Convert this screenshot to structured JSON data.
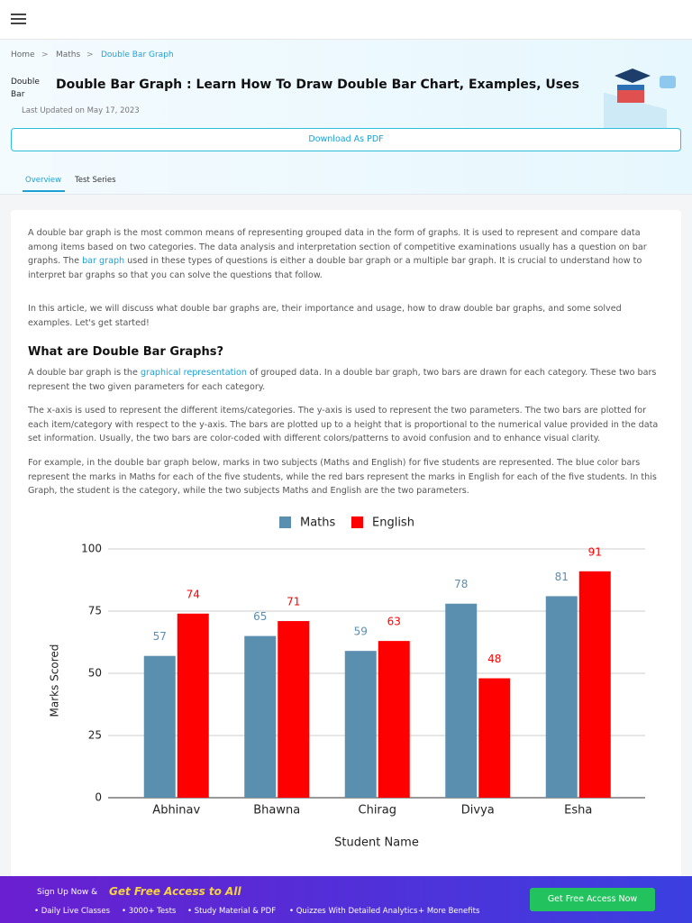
{
  "breadcrumb": [
    "Home",
    "Maths",
    "Double Bar Graph"
  ],
  "image_alt": "Double Bar",
  "title": "Double Bar Graph : Learn How To Draw Double Bar Chart, Examples, Uses",
  "updated": "Last Updated on May 17, 2023",
  "download": "Download As PDF",
  "tabs": [
    "Overview",
    "Test Series"
  ],
  "article": {
    "p1": [
      "A double bar graph is the most common means of representing grouped data in the form of graphs. It is used to represent and compare data among items based on two categories. The data analysis and interpretation section of competitive examinations usually has a question on bar graphs. The ",
      "bar graph",
      " used in these types of questions is either a double bar graph or a multiple bar graph. It is crucial to understand how to interpret bar graphs so that you can solve the questions that follow."
    ],
    "p2": "In this article, we will discuss what double bar graphs are, their importance and usage, how to draw double bar graphs, and some solved examples. Let's get started!",
    "heading": "What are Double Bar Graphs?",
    "p3": [
      "A double bar graph is the ",
      "graphical representation",
      " of grouped data. In a double bar graph, two bars are drawn for each category. These two bars represent the two given parameters for each category."
    ],
    "p4": "The x-axis is used to represent the different items/categories. The y-axis is used to represent the two parameters. The two bars are plotted for each item/category with respect to the y-axis. The bars are plotted up to a height that is proportional to the numerical value provided in the data set information. Usually, the two bars are color-coded with different colors/patterns to avoid confusion and to enhance visual clarity.",
    "p5": "For example, in the double bar graph below, marks in two subjects (Maths and English) for five students are represented. The blue color bars represent the marks in Maths for each of the five students, while the red bars represent the marks in English for each of the five students. In this Graph, the student is the category, while the two subjects Maths and English are the two parameters."
  },
  "chart_data": {
    "type": "bar",
    "categories": [
      "Abhinav",
      "Bhawna",
      "Chirag",
      "Divya",
      "Esha"
    ],
    "series": [
      {
        "name": "Maths",
        "color": "#5b8fb0",
        "label_color": "#5b8fb0",
        "values": [
          57,
          65,
          59,
          78,
          81
        ]
      },
      {
        "name": "English",
        "color": "#ff0000",
        "label_color": "#ff0000",
        "values": [
          74,
          71,
          63,
          48,
          91
        ]
      }
    ],
    "xlabel": "Student Name",
    "ylabel": "Marks Scored",
    "ylim": [
      0,
      100
    ],
    "yticks": [
      0,
      25,
      50,
      75,
      100
    ],
    "grid": true,
    "legend": "top"
  },
  "banner": {
    "lead": "Sign Up Now &",
    "highlight": "Get Free Access to All",
    "bullets": [
      "Daily Live Classes",
      "3000+ Tests",
      "Study Material & PDF",
      "Quizzes With Detailed Analytics",
      "+ More Benefits"
    ],
    "button": "Get Free Access Now"
  }
}
